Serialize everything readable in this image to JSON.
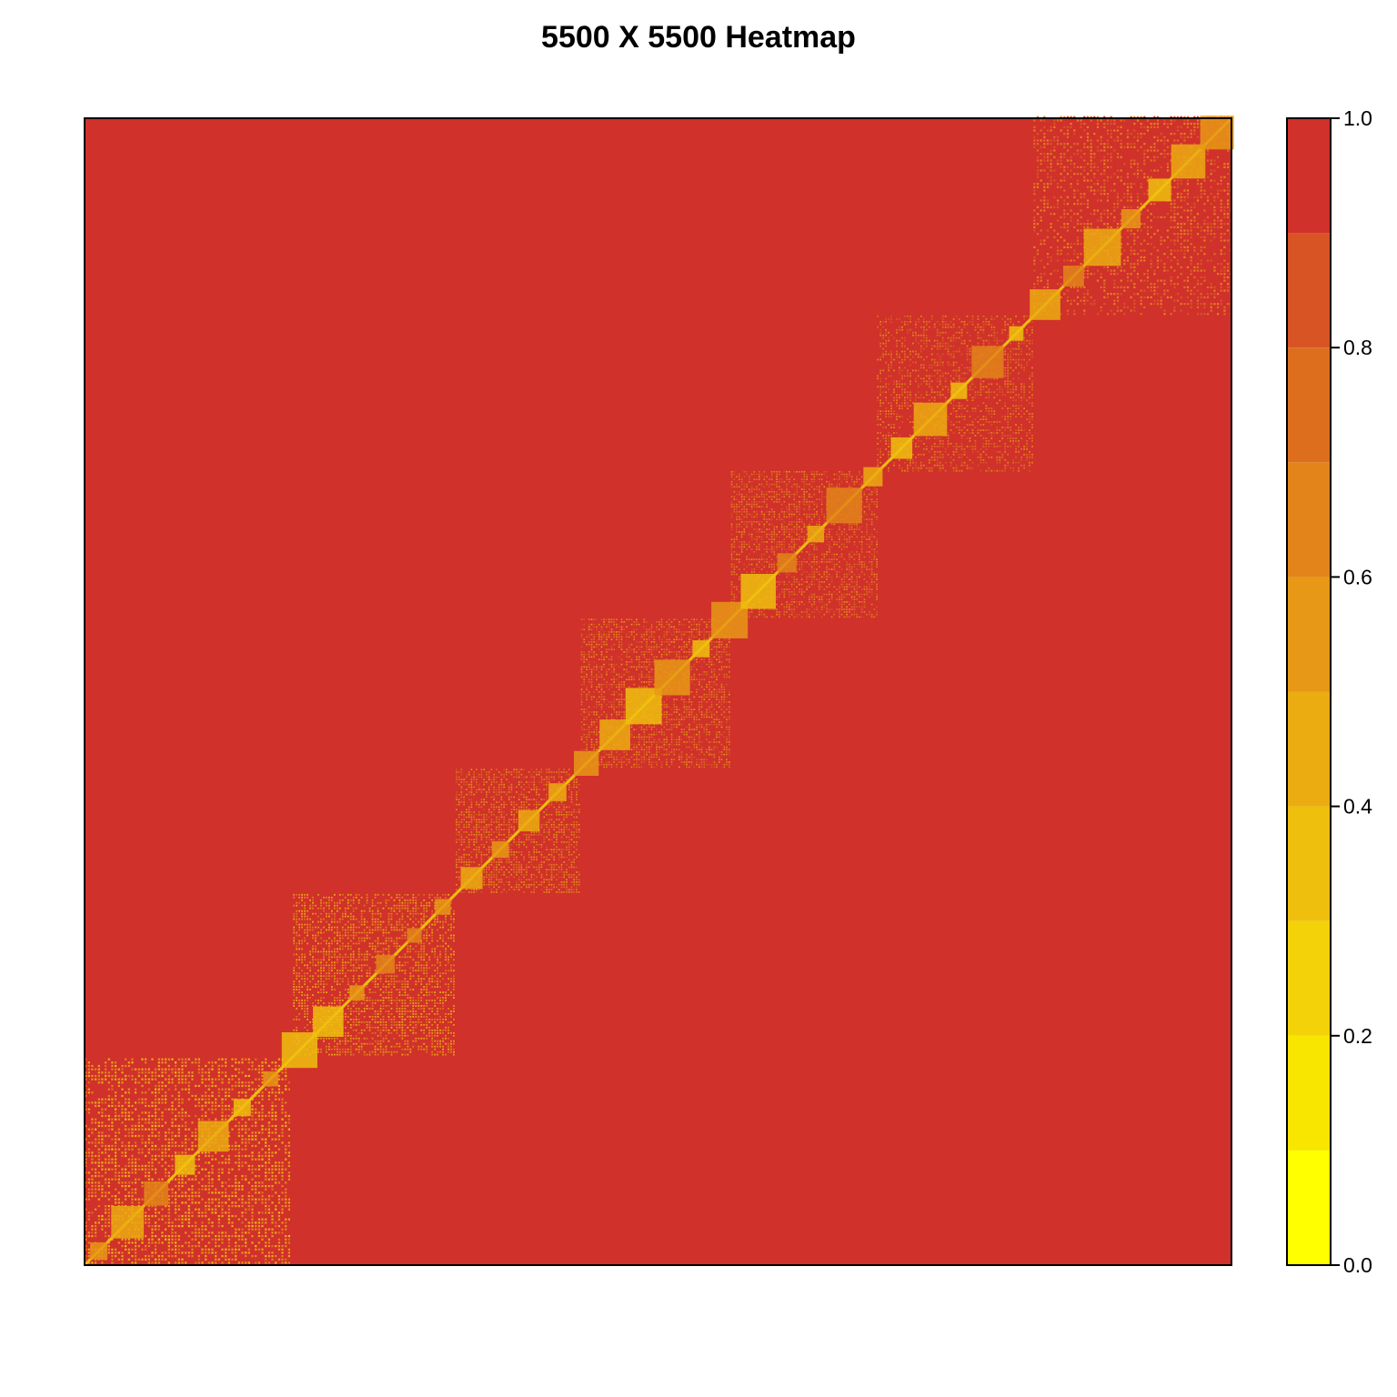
{
  "chart_data": {
    "type": "heatmap",
    "title": "5500 X 5500 Heatmap",
    "matrix_size": [
      5500,
      5500
    ],
    "xlabel": "",
    "ylabel": "",
    "value_range": [
      0.0,
      1.0
    ],
    "colorbar": {
      "levels": [
        {
          "from": 0.0,
          "to": 0.1,
          "color": "#FFFF00"
        },
        {
          "from": 0.1,
          "to": 0.2,
          "color": "#F8E600"
        },
        {
          "from": 0.2,
          "to": 0.3,
          "color": "#F3D20A"
        },
        {
          "from": 0.3,
          "to": 0.4,
          "color": "#EFBF0E"
        },
        {
          "from": 0.4,
          "to": 0.5,
          "color": "#EBAC12"
        },
        {
          "from": 0.5,
          "to": 0.6,
          "color": "#E69816"
        },
        {
          "from": 0.6,
          "to": 0.7,
          "color": "#E2841A"
        },
        {
          "from": 0.7,
          "to": 0.8,
          "color": "#DD6E1E"
        },
        {
          "from": 0.8,
          "to": 0.9,
          "color": "#D85424"
        },
        {
          "from": 0.9,
          "to": 1.0,
          "color": "#D0312A"
        }
      ],
      "tick_values": [
        0.0,
        0.2,
        0.4,
        0.6,
        0.8,
        1.0
      ],
      "tick_labels": [
        "0.0",
        "0.2",
        "0.4",
        "0.6",
        "0.8",
        "1.0"
      ],
      "placement": "right"
    },
    "background_value": 0.95,
    "diagonal_value": 0.0,
    "clusters": [
      {
        "range": [
          0,
          980
        ],
        "value": 0.55
      },
      {
        "range": [
          1000,
          1780
        ],
        "value": 0.6
      },
      {
        "range": [
          1780,
          2380
        ],
        "value": 0.68
      },
      {
        "range": [
          2380,
          3100
        ],
        "value": 0.72
      },
      {
        "range": [
          3100,
          3800
        ],
        "value": 0.75
      },
      {
        "range": [
          3800,
          4550
        ],
        "value": 0.78
      },
      {
        "range": [
          4550,
          5500
        ],
        "value": 0.8
      }
    ]
  }
}
